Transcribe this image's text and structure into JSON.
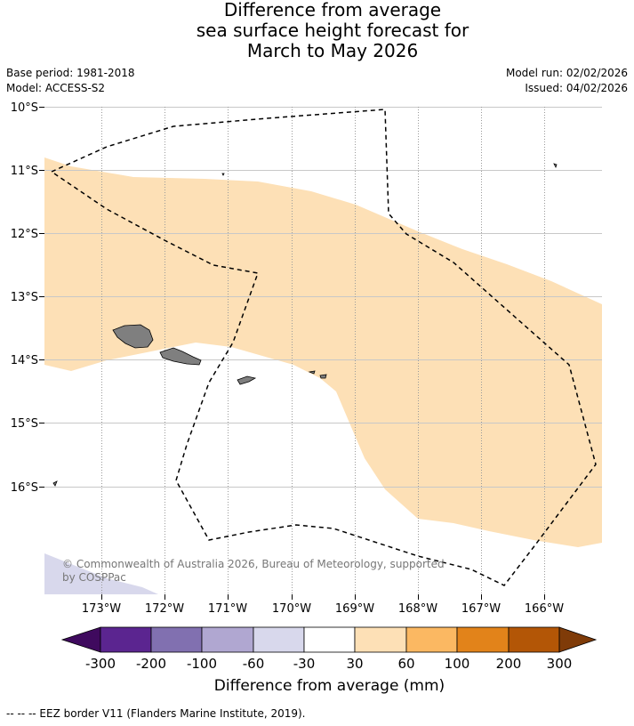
{
  "title": {
    "line1": "Difference from average",
    "line2": "sea surface height forecast for",
    "line3": "March to May 2026"
  },
  "meta": {
    "base_period": "Base period: 1981-2018",
    "model": "Model: ACCESS-S2",
    "model_run": "Model run: 02/02/2026",
    "issued": "Issued: 04/02/2026"
  },
  "map": {
    "lat_labels": [
      "10°S",
      "11°S",
      "12°S",
      "13°S",
      "14°S",
      "15°S",
      "16°S"
    ],
    "lon_labels": [
      "173°W",
      "172°W",
      "171°W",
      "170°W",
      "169°W",
      "168°W",
      "167°W",
      "166°W"
    ],
    "copyright": [
      "© Commonwealth of Australia 2026, Bureau of Meteorology, supported",
      "by COSPPac"
    ],
    "fill_colors": {
      "land": "#7f7f7f",
      "band_30_60": "#fde0b6",
      "band_m60_m30": "#d8d8ec"
    }
  },
  "colorbar": {
    "label": "Difference from average (mm)",
    "ticks": [
      "-300",
      "-200",
      "-100",
      "-60",
      "-30",
      "30",
      "60",
      "100",
      "200",
      "300"
    ],
    "colors": [
      "#3f0a5e",
      "#5b2590",
      "#8170b0",
      "#b0a7d1",
      "#d8d8ec",
      "#ffffff",
      "#fde0b6",
      "#fbb862",
      "#e2831a",
      "#b35606",
      "#7f3b08"
    ]
  },
  "footnote": "--  --  -- EEZ border V11 (Flanders Marine Institute, 2019)."
}
